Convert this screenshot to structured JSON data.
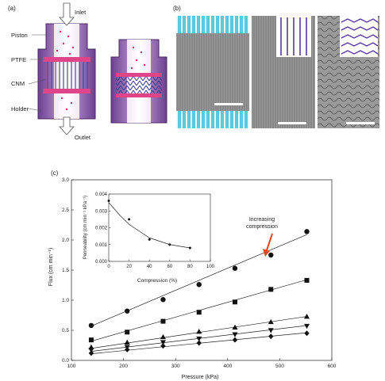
{
  "panel_a": {
    "label": "(a)",
    "callouts": {
      "inlet": "Inlet",
      "piston": "Piston",
      "ptfe": "PTFE",
      "cnm": "CNM",
      "holder": "Holder",
      "outlet": "Outlet"
    }
  },
  "panel_b": {
    "label": "(b)"
  },
  "panel_c": {
    "label": "(c)"
  },
  "chart_data": [
    {
      "type": "line",
      "xlabel": "Pressure (kPa)",
      "ylabel": "Flux (cm min⁻¹)",
      "xlim": [
        100,
        600
      ],
      "ylim": [
        0.0,
        3.0
      ],
      "xticks": [
        100,
        200,
        300,
        400,
        500,
        600
      ],
      "yticks": [
        0.0,
        0.5,
        1.0,
        1.5,
        2.0,
        2.5,
        3.0
      ],
      "grid": false,
      "annotation": {
        "text_line1": "Increasing",
        "text_line2": "compression",
        "arrow_color": "#e04a1a"
      },
      "series": [
        {
          "marker": "circle",
          "points": [
            [
              138,
              0.58
            ],
            [
              207,
              0.82
            ],
            [
              276,
              1.01
            ],
            [
              345,
              1.26
            ],
            [
              414,
              1.53
            ],
            [
              483,
              1.75
            ],
            [
              552,
              2.14
            ]
          ],
          "fit": [
            [
              138,
              0.57
            ],
            [
              552,
              2.09
            ]
          ]
        },
        {
          "marker": "square",
          "points": [
            [
              138,
              0.34
            ],
            [
              207,
              0.47
            ],
            [
              276,
              0.65
            ],
            [
              345,
              0.8
            ],
            [
              414,
              0.97
            ],
            [
              483,
              1.18
            ],
            [
              552,
              1.33
            ]
          ],
          "fit": [
            [
              138,
              0.32
            ],
            [
              552,
              1.34
            ]
          ]
        },
        {
          "marker": "triangle-up",
          "points": [
            [
              138,
              0.22
            ],
            [
              207,
              0.3
            ],
            [
              276,
              0.39
            ],
            [
              345,
              0.48
            ],
            [
              414,
              0.55
            ],
            [
              483,
              0.64
            ],
            [
              552,
              0.73
            ]
          ],
          "fit": [
            [
              138,
              0.2
            ],
            [
              552,
              0.73
            ]
          ]
        },
        {
          "marker": "triangle-down",
          "points": [
            [
              138,
              0.17
            ],
            [
              207,
              0.22
            ],
            [
              276,
              0.3
            ],
            [
              345,
              0.36
            ],
            [
              414,
              0.43
            ],
            [
              483,
              0.5
            ],
            [
              552,
              0.57
            ]
          ],
          "fit": [
            [
              138,
              0.15
            ],
            [
              552,
              0.58
            ]
          ]
        },
        {
          "marker": "diamond",
          "points": [
            [
              138,
              0.12
            ],
            [
              207,
              0.18
            ],
            [
              276,
              0.24
            ],
            [
              345,
              0.29
            ],
            [
              414,
              0.34
            ],
            [
              483,
              0.4
            ],
            [
              552,
              0.45
            ]
          ],
          "fit": [
            [
              138,
              0.11
            ],
            [
              552,
              0.46
            ]
          ]
        }
      ]
    },
    {
      "type": "scatter",
      "xlabel": "Compression (%)",
      "ylabel": "Permeability (cm min⁻¹ kPa⁻¹)",
      "xlim": [
        0,
        100
      ],
      "ylim": [
        0.0,
        0.004
      ],
      "xticks": [
        0,
        20,
        40,
        60,
        80,
        100
      ],
      "yticks": [
        "0.000",
        "0.001",
        "0.002",
        "0.003",
        "0.004"
      ],
      "points": [
        [
          0,
          0.0036
        ],
        [
          20,
          0.0025
        ],
        [
          40,
          0.0013
        ],
        [
          60,
          0.001
        ],
        [
          80,
          0.0008
        ]
      ],
      "fit_curve": [
        [
          0,
          0.0035
        ],
        [
          10,
          0.0028
        ],
        [
          20,
          0.0022
        ],
        [
          30,
          0.0018
        ],
        [
          40,
          0.0014
        ],
        [
          50,
          0.0012
        ],
        [
          60,
          0.001
        ],
        [
          70,
          0.0009
        ],
        [
          80,
          0.0008
        ]
      ]
    }
  ]
}
